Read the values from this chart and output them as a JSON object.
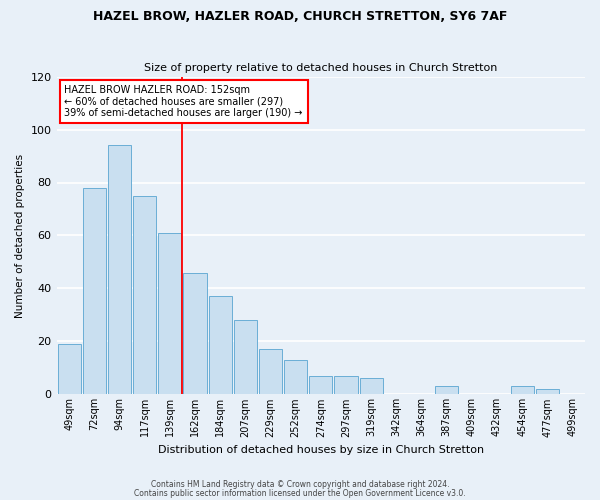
{
  "title": "HAZEL BROW, HAZLER ROAD, CHURCH STRETTON, SY6 7AF",
  "subtitle": "Size of property relative to detached houses in Church Stretton",
  "xlabel": "Distribution of detached houses by size in Church Stretton",
  "ylabel": "Number of detached properties",
  "bar_labels": [
    "49sqm",
    "72sqm",
    "94sqm",
    "117sqm",
    "139sqm",
    "162sqm",
    "184sqm",
    "207sqm",
    "229sqm",
    "252sqm",
    "274sqm",
    "297sqm",
    "319sqm",
    "342sqm",
    "364sqm",
    "387sqm",
    "409sqm",
    "432sqm",
    "454sqm",
    "477sqm",
    "499sqm"
  ],
  "bar_values": [
    19,
    78,
    94,
    75,
    61,
    46,
    37,
    28,
    17,
    13,
    7,
    7,
    6,
    0,
    0,
    3,
    0,
    0,
    3,
    2,
    0
  ],
  "bar_color": "#c9dff0",
  "bar_edge_color": "#6aaed6",
  "background_color": "#e8f0f8",
  "grid_color": "#ffffff",
  "ylim": [
    0,
    120
  ],
  "yticks": [
    0,
    20,
    40,
    60,
    80,
    100,
    120
  ],
  "redline_index": 5,
  "annotation_title": "HAZEL BROW HAZLER ROAD: 152sqm",
  "annotation_line1": "← 60% of detached houses are smaller (297)",
  "annotation_line2": "39% of semi-detached houses are larger (190) →",
  "footer1": "Contains HM Land Registry data © Crown copyright and database right 2024.",
  "footer2": "Contains public sector information licensed under the Open Government Licence v3.0."
}
